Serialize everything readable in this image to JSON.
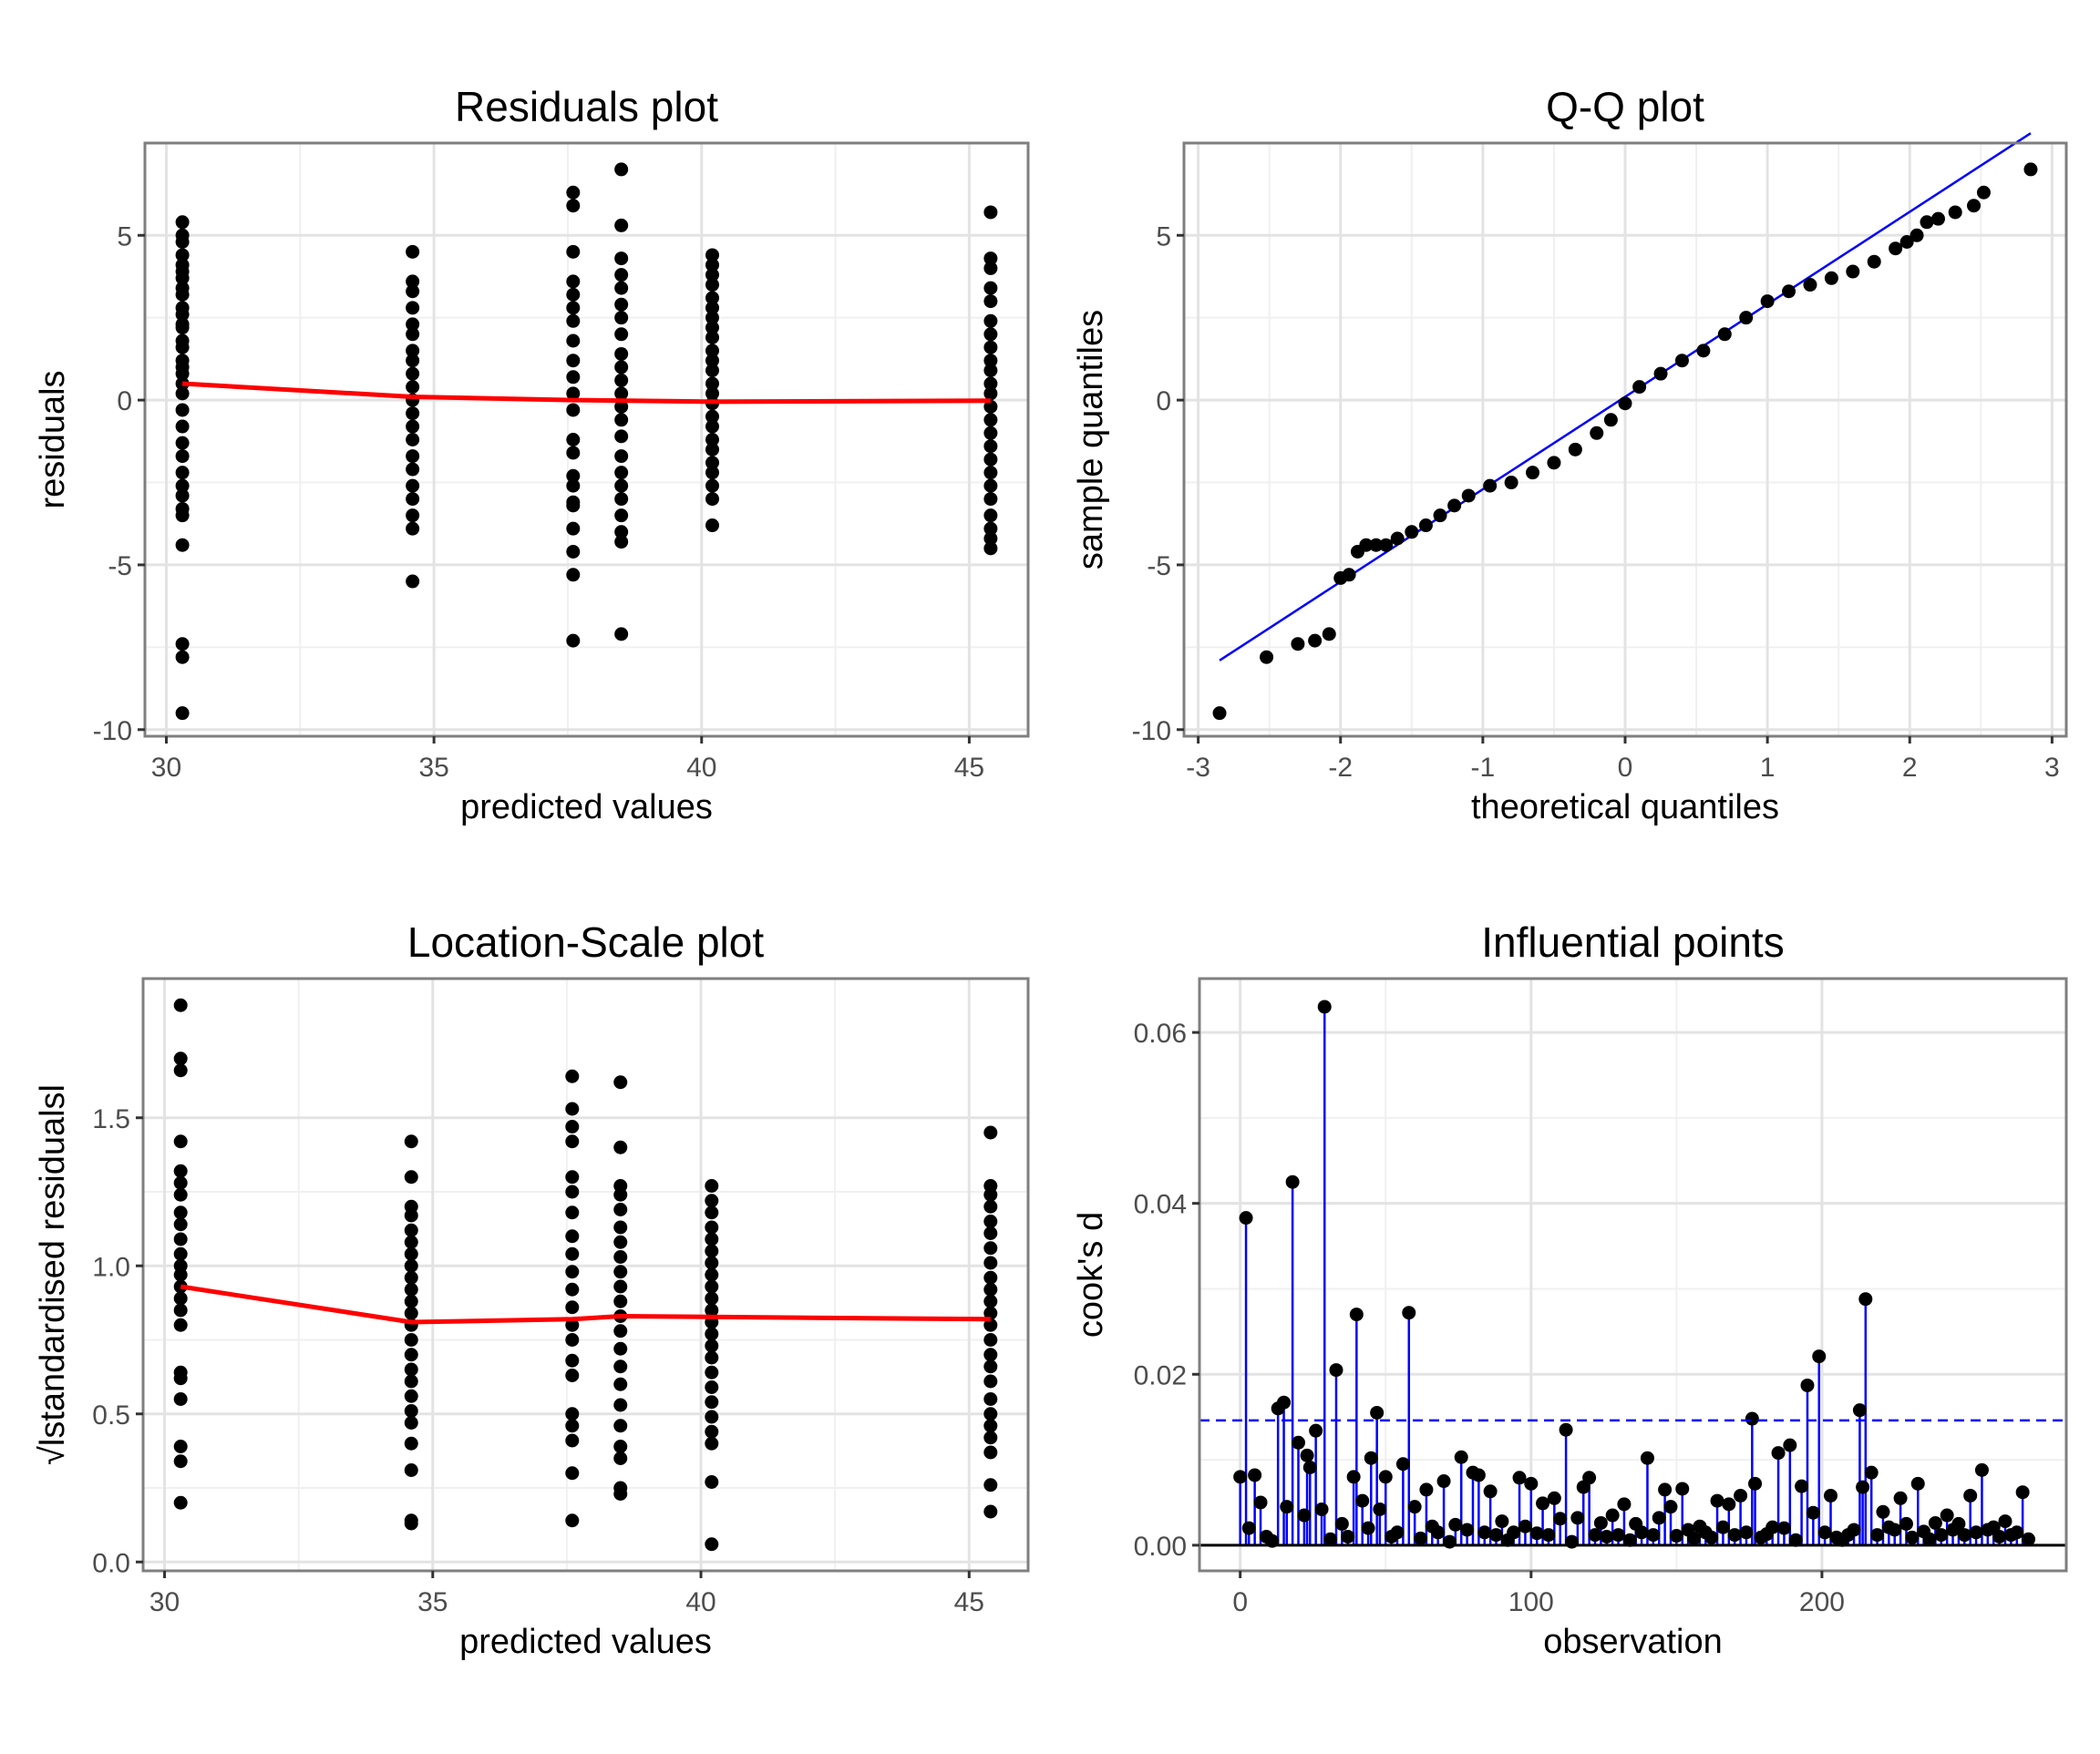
{
  "chart_data": [
    {
      "type": "scatter",
      "title": "Residuals plot",
      "xlabel": "predicted values",
      "ylabel": "residuals",
      "xlim": [
        29.6,
        46.1
      ],
      "ylim": [
        -10.2,
        7.8
      ],
      "xticks": [
        30,
        35,
        40,
        45
      ],
      "yticks": [
        -10,
        -5,
        0,
        5
      ],
      "grid": true,
      "point_color": "#000000",
      "line_color": "#ff0000",
      "groups": [
        {
          "x": 30.3,
          "y": [
            5.4,
            5.0,
            4.8,
            4.4,
            4.1,
            3.9,
            3.7,
            3.4,
            3.2,
            2.8,
            2.6,
            2.3,
            2.2,
            1.8,
            1.6,
            1.2,
            1.0,
            0.8,
            0.5,
            0.2,
            -0.3,
            -0.8,
            -1.3,
            -1.7,
            -2.2,
            -2.6,
            -2.9,
            -3.3,
            -3.5,
            -4.4,
            -7.4,
            -7.8,
            -9.5
          ]
        },
        {
          "x": 34.6,
          "y": [
            4.5,
            3.6,
            3.3,
            2.8,
            2.3,
            2.0,
            1.5,
            1.2,
            0.8,
            0.4,
            0.0,
            -0.4,
            -0.8,
            -1.2,
            -1.7,
            -2.1,
            -2.6,
            -3.0,
            -3.5,
            -3.9,
            -5.5
          ]
        },
        {
          "x": 37.6,
          "y": [
            6.3,
            5.9,
            4.5,
            3.6,
            3.2,
            2.8,
            2.4,
            1.8,
            1.2,
            0.7,
            0.2,
            -0.3,
            -1.2,
            -1.6,
            -2.3,
            -2.6,
            -3.1,
            -3.2,
            -3.9,
            -4.6,
            -5.3,
            -7.3
          ]
        },
        {
          "x": 38.5,
          "y": [
            7.0,
            5.3,
            4.3,
            3.8,
            3.4,
            2.9,
            2.5,
            2.0,
            1.4,
            1.0,
            0.6,
            0.2,
            -0.2,
            -0.6,
            -1.1,
            -1.7,
            -2.2,
            -2.6,
            -3.0,
            -3.5,
            -4.0,
            -4.3,
            -7.1
          ]
        },
        {
          "x": 40.2,
          "y": [
            4.4,
            4.1,
            3.8,
            3.5,
            3.1,
            2.8,
            2.5,
            2.2,
            1.9,
            1.5,
            1.2,
            0.9,
            0.5,
            0.2,
            -0.1,
            -0.5,
            -0.8,
            -1.2,
            -1.5,
            -1.9,
            -2.2,
            -2.6,
            -3.0,
            -3.8
          ]
        },
        {
          "x": 45.4,
          "y": [
            5.7,
            4.3,
            4.0,
            3.4,
            3.0,
            2.4,
            2.0,
            1.6,
            1.2,
            0.9,
            0.5,
            0.2,
            -0.2,
            -0.6,
            -1.0,
            -1.4,
            -1.8,
            -2.2,
            -2.6,
            -3.0,
            -3.5,
            -3.9,
            -4.2,
            -4.5
          ]
        }
      ],
      "trend_line": [
        [
          30.3,
          0.5
        ],
        [
          34.6,
          0.1
        ],
        [
          37.6,
          0.0
        ],
        [
          40.2,
          -0.05
        ],
        [
          45.4,
          -0.02
        ]
      ]
    },
    {
      "type": "scatter",
      "title": "Q-Q plot",
      "xlabel": "theoretical quantiles",
      "ylabel": "sample quantiles",
      "xlim": [
        -3.1,
        3.1
      ],
      "ylim": [
        -10.2,
        7.8
      ],
      "xticks": [
        -3,
        -2,
        -1,
        0,
        1,
        2,
        3
      ],
      "yticks": [
        -10,
        -5,
        0,
        5
      ],
      "grid": true,
      "point_color": "#000000",
      "line_color": "#0000ff",
      "points": [
        [
          -2.85,
          -9.5
        ],
        [
          -2.52,
          -7.8
        ],
        [
          -2.3,
          -7.4
        ],
        [
          -2.18,
          -7.3
        ],
        [
          -2.08,
          -7.1
        ],
        [
          -2.0,
          -5.4
        ],
        [
          -1.94,
          -5.3
        ],
        [
          -1.88,
          -4.6
        ],
        [
          -1.82,
          -4.4
        ],
        [
          -1.75,
          -4.4
        ],
        [
          -1.68,
          -4.4
        ],
        [
          -1.6,
          -4.2
        ],
        [
          -1.5,
          -4.0
        ],
        [
          -1.4,
          -3.8
        ],
        [
          -1.3,
          -3.5
        ],
        [
          -1.2,
          -3.2
        ],
        [
          -1.1,
          -2.9
        ],
        [
          -0.95,
          -2.6
        ],
        [
          -0.8,
          -2.5
        ],
        [
          -0.65,
          -2.2
        ],
        [
          -0.5,
          -1.9
        ],
        [
          -0.35,
          -1.5
        ],
        [
          -0.2,
          -1.0
        ],
        [
          -0.1,
          -0.6
        ],
        [
          0.0,
          -0.1
        ],
        [
          0.1,
          0.4
        ],
        [
          0.25,
          0.8
        ],
        [
          0.4,
          1.2
        ],
        [
          0.55,
          1.5
        ],
        [
          0.7,
          2.0
        ],
        [
          0.85,
          2.5
        ],
        [
          1.0,
          3.0
        ],
        [
          1.15,
          3.3
        ],
        [
          1.3,
          3.5
        ],
        [
          1.45,
          3.7
        ],
        [
          1.6,
          3.9
        ],
        [
          1.75,
          4.2
        ],
        [
          1.9,
          4.6
        ],
        [
          1.98,
          4.8
        ],
        [
          2.05,
          5.0
        ],
        [
          2.12,
          5.4
        ],
        [
          2.2,
          5.5
        ],
        [
          2.32,
          5.7
        ],
        [
          2.45,
          5.9
        ],
        [
          2.52,
          6.3
        ],
        [
          2.85,
          7.0
        ]
      ],
      "reference_line": [
        [
          -2.85,
          -7.9
        ],
        [
          2.85,
          8.1
        ]
      ]
    },
    {
      "type": "scatter",
      "title": "Location-Scale plot",
      "xlabel": "predicted values",
      "ylabel": "√lstandardised residualsl",
      "xlim": [
        29.6,
        46.1
      ],
      "ylim": [
        -0.03,
        1.97
      ],
      "xticks": [
        30,
        35,
        40,
        45
      ],
      "yticks": [
        "0.0",
        "0.5",
        "1.0",
        "1.5"
      ],
      "grid": true,
      "point_color": "#000000",
      "line_color": "#ff0000",
      "groups": [
        {
          "x": 30.3,
          "y": [
            1.88,
            1.7,
            1.66,
            1.42,
            1.32,
            1.28,
            1.24,
            1.18,
            1.14,
            1.09,
            1.04,
            1.0,
            0.97,
            0.93,
            0.89,
            0.85,
            0.8,
            0.64,
            0.62,
            0.55,
            0.39,
            0.34,
            0.2
          ]
        },
        {
          "x": 34.6,
          "y": [
            1.42,
            1.3,
            1.2,
            1.17,
            1.12,
            1.08,
            1.04,
            1.0,
            0.96,
            0.92,
            0.88,
            0.84,
            0.8,
            0.75,
            0.7,
            0.65,
            0.61,
            0.56,
            0.51,
            0.47,
            0.4,
            0.31,
            0.14,
            0.13
          ]
        },
        {
          "x": 37.6,
          "y": [
            1.64,
            1.53,
            1.47,
            1.42,
            1.3,
            1.25,
            1.18,
            1.1,
            1.04,
            0.98,
            0.92,
            0.86,
            0.8,
            0.75,
            0.68,
            0.63,
            0.5,
            0.46,
            0.41,
            0.3,
            0.14
          ]
        },
        {
          "x": 38.5,
          "y": [
            1.62,
            1.4,
            1.27,
            1.24,
            1.19,
            1.13,
            1.08,
            1.03,
            0.98,
            0.93,
            0.88,
            0.83,
            0.78,
            0.72,
            0.66,
            0.6,
            0.53,
            0.46,
            0.39,
            0.35,
            0.25,
            0.23
          ]
        },
        {
          "x": 40.2,
          "y": [
            1.27,
            1.22,
            1.18,
            1.13,
            1.09,
            1.05,
            1.01,
            0.97,
            0.93,
            0.89,
            0.85,
            0.81,
            0.77,
            0.73,
            0.69,
            0.64,
            0.59,
            0.54,
            0.49,
            0.44,
            0.4,
            0.27,
            0.06
          ]
        },
        {
          "x": 45.4,
          "y": [
            1.45,
            1.27,
            1.24,
            1.2,
            1.15,
            1.11,
            1.06,
            1.01,
            0.96,
            0.92,
            0.88,
            0.84,
            0.8,
            0.75,
            0.7,
            0.66,
            0.61,
            0.55,
            0.5,
            0.46,
            0.42,
            0.37,
            0.26,
            0.17
          ]
        }
      ],
      "trend_line": [
        [
          30.3,
          0.93
        ],
        [
          34.6,
          0.81
        ],
        [
          37.6,
          0.82
        ],
        [
          38.5,
          0.83
        ],
        [
          45.4,
          0.82
        ]
      ]
    },
    {
      "type": "scatter",
      "title": "Influential points",
      "xlabel": "observation",
      "ylabel": "cook's d",
      "xlim": [
        -14,
        284
      ],
      "ylim": [
        -0.003,
        0.0663
      ],
      "xticks": [
        0,
        100,
        200
      ],
      "yticks": [
        "0.00",
        "0.02",
        "0.04",
        "0.06"
      ],
      "grid": true,
      "point_color": "#000000",
      "stem_color": "#0000ff",
      "threshold": 0.0146,
      "threshold_color": "#0000ff",
      "baseline_color": "#000000",
      "points": [
        [
          0,
          0.008
        ],
        [
          2,
          0.0383
        ],
        [
          3,
          0.002
        ],
        [
          5,
          0.0082
        ],
        [
          7,
          0.005
        ],
        [
          9,
          0.001
        ],
        [
          11,
          0.0005
        ],
        [
          13,
          0.016
        ],
        [
          15,
          0.0167
        ],
        [
          16,
          0.0045
        ],
        [
          18,
          0.0425
        ],
        [
          20,
          0.012
        ],
        [
          22,
          0.0035
        ],
        [
          23,
          0.0105
        ],
        [
          24,
          0.0091
        ],
        [
          26,
          0.0134
        ],
        [
          28,
          0.0042
        ],
        [
          29,
          0.063
        ],
        [
          31,
          0.0007
        ],
        [
          33,
          0.0205
        ],
        [
          35,
          0.0025
        ],
        [
          37,
          0.001
        ],
        [
          39,
          0.008
        ],
        [
          40,
          0.027
        ],
        [
          42,
          0.0052
        ],
        [
          44,
          0.002
        ],
        [
          45,
          0.0102
        ],
        [
          47,
          0.0155
        ],
        [
          48,
          0.0042
        ],
        [
          50,
          0.008
        ],
        [
          52,
          0.001
        ],
        [
          54,
          0.0015
        ],
        [
          56,
          0.0095
        ],
        [
          58,
          0.0272
        ],
        [
          60,
          0.0045
        ],
        [
          62,
          0.0008
        ],
        [
          64,
          0.0065
        ],
        [
          66,
          0.0022
        ],
        [
          68,
          0.0015
        ],
        [
          70,
          0.0075
        ],
        [
          72,
          0.0004
        ],
        [
          74,
          0.0024
        ],
        [
          76,
          0.0103
        ],
        [
          78,
          0.0018
        ],
        [
          80,
          0.0085
        ],
        [
          82,
          0.0082
        ],
        [
          84,
          0.0015
        ],
        [
          86,
          0.0063
        ],
        [
          88,
          0.0012
        ],
        [
          90,
          0.0028
        ],
        [
          92,
          0.0006
        ],
        [
          94,
          0.0015
        ],
        [
          96,
          0.0079
        ],
        [
          98,
          0.0022
        ],
        [
          100,
          0.0072
        ],
        [
          102,
          0.0014
        ],
        [
          104,
          0.0049
        ],
        [
          106,
          0.0012
        ],
        [
          108,
          0.0055
        ],
        [
          110,
          0.0031
        ],
        [
          112,
          0.0135
        ],
        [
          114,
          0.0004
        ],
        [
          116,
          0.0032
        ],
        [
          118,
          0.0068
        ],
        [
          120,
          0.0079
        ],
        [
          122,
          0.0012
        ],
        [
          124,
          0.0026
        ],
        [
          126,
          0.001
        ],
        [
          128,
          0.0035
        ],
        [
          130,
          0.0012
        ],
        [
          132,
          0.0048
        ],
        [
          134,
          0.0006
        ],
        [
          136,
          0.0025
        ],
        [
          138,
          0.0015
        ],
        [
          140,
          0.0102
        ],
        [
          142,
          0.0012
        ],
        [
          144,
          0.0032
        ],
        [
          146,
          0.0065
        ],
        [
          148,
          0.0045
        ],
        [
          150,
          0.0011
        ],
        [
          152,
          0.0066
        ],
        [
          154,
          0.0018
        ],
        [
          156,
          0.0008
        ],
        [
          158,
          0.0022
        ],
        [
          160,
          0.0015
        ],
        [
          162,
          0.0009
        ],
        [
          164,
          0.0052
        ],
        [
          166,
          0.0021
        ],
        [
          168,
          0.0048
        ],
        [
          170,
          0.0012
        ],
        [
          172,
          0.0058
        ],
        [
          174,
          0.0015
        ],
        [
          176,
          0.0148
        ],
        [
          177,
          0.0072
        ],
        [
          179,
          0.0009
        ],
        [
          181,
          0.0013
        ],
        [
          183,
          0.0021
        ],
        [
          185,
          0.0108
        ],
        [
          187,
          0.002
        ],
        [
          189,
          0.0117
        ],
        [
          191,
          0.0006
        ],
        [
          193,
          0.0069
        ],
        [
          195,
          0.0187
        ],
        [
          197,
          0.0038
        ],
        [
          199,
          0.0221
        ],
        [
          201,
          0.0015
        ],
        [
          203,
          0.0058
        ],
        [
          205,
          0.0009
        ],
        [
          207,
          0.0006
        ],
        [
          209,
          0.0012
        ],
        [
          211,
          0.0018
        ],
        [
          213,
          0.0158
        ],
        [
          214,
          0.0068
        ],
        [
          215,
          0.0288
        ],
        [
          217,
          0.0085
        ],
        [
          219,
          0.0012
        ],
        [
          221,
          0.0039
        ],
        [
          223,
          0.0021
        ],
        [
          225,
          0.0018
        ],
        [
          227,
          0.0055
        ],
        [
          229,
          0.0025
        ],
        [
          231,
          0.0009
        ],
        [
          233,
          0.0072
        ],
        [
          235,
          0.0016
        ],
        [
          237,
          0.0007
        ],
        [
          239,
          0.0026
        ],
        [
          241,
          0.0012
        ],
        [
          243,
          0.0035
        ],
        [
          245,
          0.0018
        ],
        [
          247,
          0.0025
        ],
        [
          249,
          0.0012
        ],
        [
          251,
          0.0058
        ],
        [
          253,
          0.0015
        ],
        [
          255,
          0.0088
        ],
        [
          257,
          0.0018
        ],
        [
          259,
          0.0021
        ],
        [
          261,
          0.001
        ],
        [
          263,
          0.0028
        ],
        [
          265,
          0.0012
        ],
        [
          267,
          0.0015
        ],
        [
          269,
          0.0062
        ],
        [
          271,
          0.0007
        ]
      ]
    }
  ]
}
